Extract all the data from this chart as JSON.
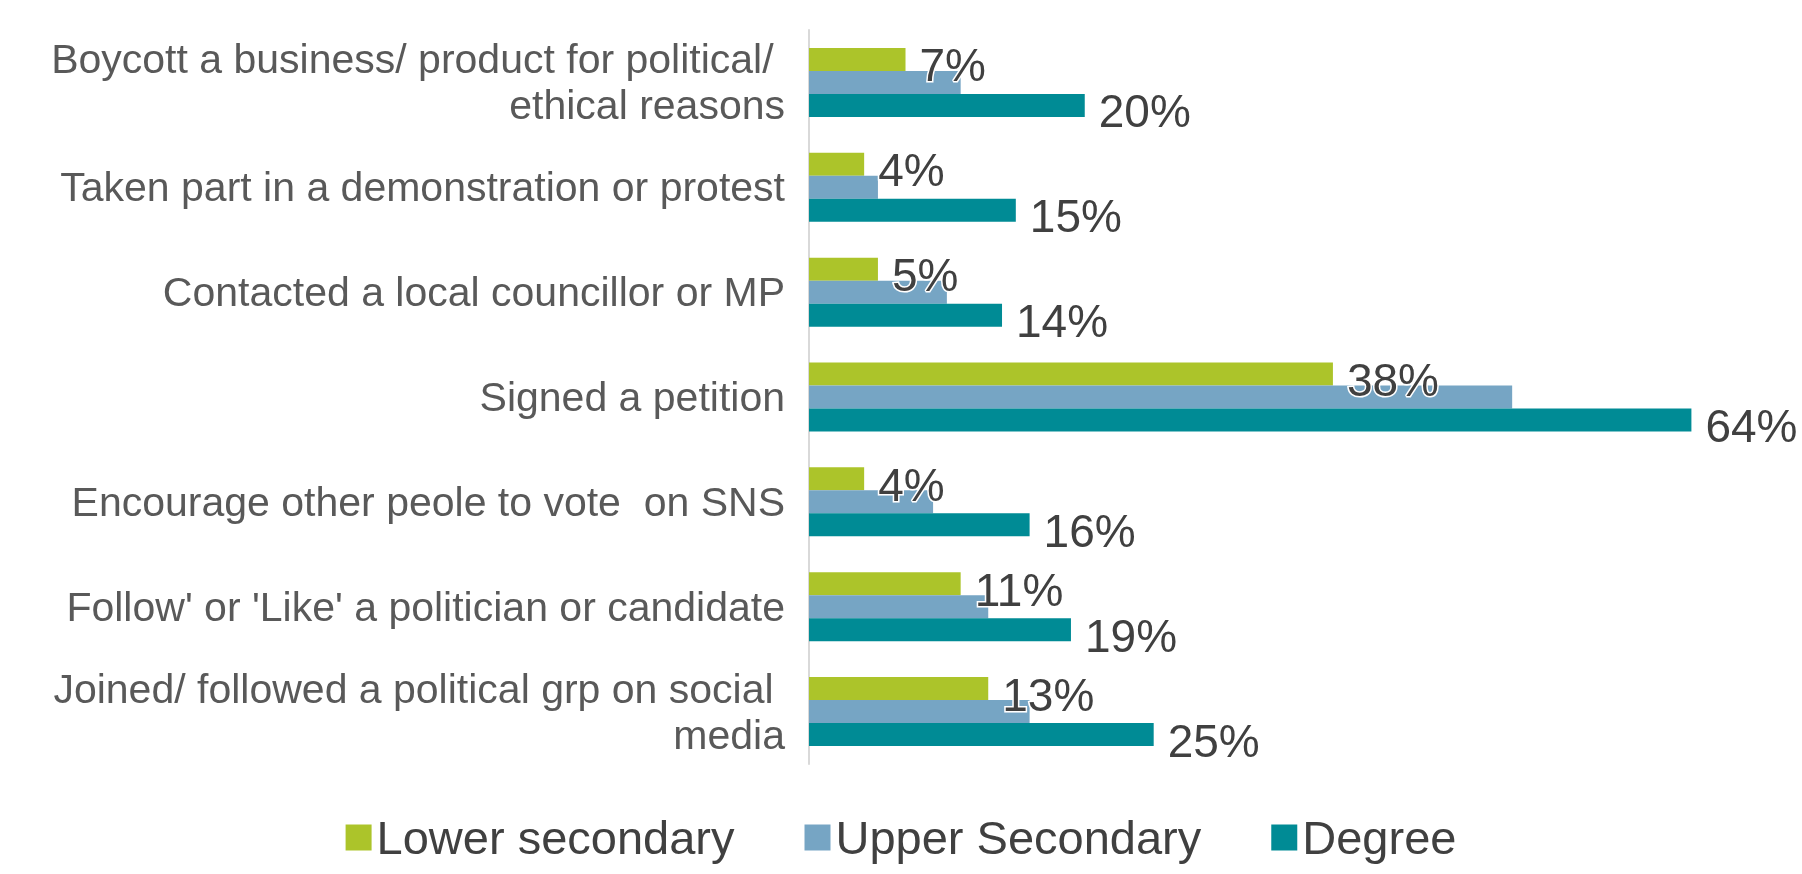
{
  "chart_data": {
    "type": "bar",
    "orientation": "horizontal",
    "categories": [
      "Boycott a business/ product for political/ ethical reasons",
      "Taken part in a demonstration or protest",
      "Contacted a local councillor or MP",
      "Signed a petition",
      "Encourage other peole to vote  on SNS",
      "Follow' or 'Like' a politician or candidate",
      "Joined/ followed a political grp on social media"
    ],
    "series": [
      {
        "name": "Lower secondary",
        "color": "#acc42a",
        "values": [
          7,
          4,
          5,
          38,
          4,
          11,
          13
        ],
        "value_labels": [
          "7%",
          "4%",
          "5%",
          "38%",
          "4%",
          "11%",
          "13%"
        ]
      },
      {
        "name": "Upper Secondary",
        "color": "#76a5c4",
        "values": [
          11,
          5,
          10,
          51,
          9,
          13,
          16
        ]
      },
      {
        "name": "Degree",
        "color": "#008b95",
        "values": [
          20,
          15,
          14,
          64,
          16,
          19,
          25
        ],
        "value_labels": [
          "20%",
          "15%",
          "14%",
          "64%",
          "16%",
          "19%",
          "25%"
        ]
      }
    ],
    "legend": "bottom"
  }
}
